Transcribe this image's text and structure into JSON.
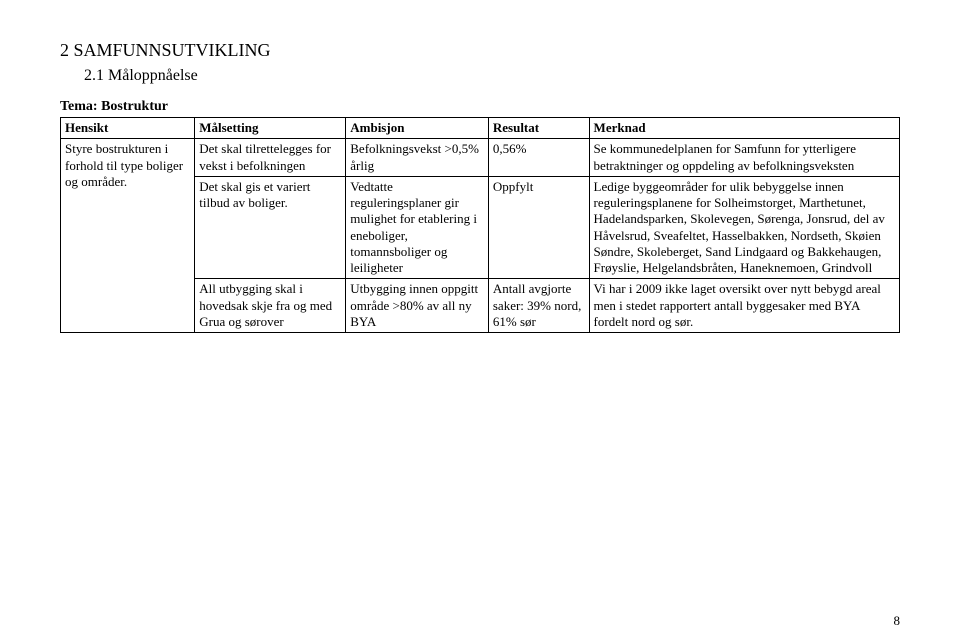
{
  "heading1": "2  SAMFUNNSUTVIKLING",
  "heading2": "2.1  Måloppnåelse",
  "theme_line": "Tema: Bostruktur",
  "table": {
    "headers": [
      "Hensikt",
      "Målsetting",
      "Ambisjon",
      "Resultat",
      "Merknad"
    ],
    "col_widths_pct": [
      16,
      18,
      17,
      12,
      37
    ],
    "rows": [
      {
        "hensikt": "Styre bostrukturen i forhold til type boliger og områder.",
        "hensikt_rowspan": 3,
        "maalsetting": "Det skal tilrettelegges for vekst i befolkningen",
        "ambisjon": "Befolkningsvekst >0,5% årlig",
        "resultat": "0,56%",
        "merknad": "Se kommunedelplanen for Samfunn for ytterligere betraktninger og oppdeling av befolkningsveksten"
      },
      {
        "maalsetting": "Det skal gis et variert tilbud av boliger.",
        "ambisjon": "Vedtatte reguleringsplaner gir mulighet for etablering i eneboliger, tomannsboliger og leiligheter",
        "resultat": "Oppfylt",
        "merknad": "Ledige byggeområder for ulik bebyggelse innen reguleringsplanene for Solheimstorget, Marthetunet, Hadelandsparken, Skolevegen, Sørenga, Jonsrud, del av Håvelsrud, Sveafeltet, Hasselbakken, Nordseth, Skøien Søndre, Skoleberget, Sand Lindgaard og Bakkehaugen, Frøyslie, Helgelandsbråten, Haneknemoen, Grindvoll"
      },
      {
        "maalsetting": "All utbygging skal i hovedsak skje fra og med Grua og sørover",
        "ambisjon": "Utbygging innen oppgitt område >80% av all ny BYA",
        "resultat": "Antall avgjorte saker: 39% nord, 61% sør",
        "merknad": "Vi har i 2009 ikke laget oversikt over nytt bebygd areal men i stedet rapportert antall byggesaker med BYA fordelt nord og sør."
      }
    ]
  },
  "page_number": "8",
  "styling": {
    "font_family": "Times New Roman",
    "body_fontsize_pt": 10,
    "heading1_fontsize_pt": 14,
    "heading2_fontsize_pt": 12,
    "border_color": "#000000",
    "background_color": "#ffffff",
    "text_color": "#000000"
  }
}
